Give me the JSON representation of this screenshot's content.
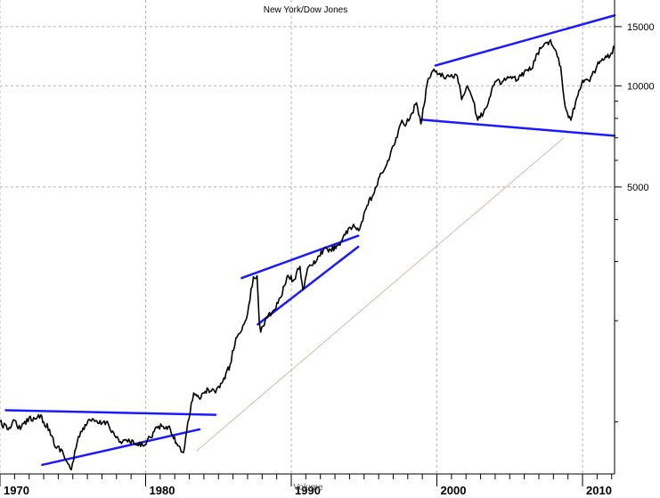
{
  "chart_data": {
    "type": "line",
    "title": "New York/Dow Jones",
    "subtitle": "Volume",
    "x_range": [
      1970.0,
      2012.2
    ],
    "y_range": [
      700,
      18000
    ],
    "y_scale": "log",
    "grid": true,
    "x_ticks": [
      1970,
      1980,
      1990,
      2000,
      2010
    ],
    "x_tick_labels": [
      "1970",
      "1980",
      "1990",
      "2000",
      "2010"
    ],
    "y_ticks": [
      5000,
      10000,
      15000
    ],
    "y_tick_labels": [
      "5000",
      "10000",
      "15000"
    ],
    "colors": {
      "price": "#000000",
      "trendline": "#1a1aff",
      "grid": "#b4b4b4",
      "diagonal": "#d8b8a8"
    },
    "series": [
      {
        "x": [
          1970.0,
          1970.5,
          1971.0,
          1971.4,
          1972.0,
          1972.4,
          1972.8,
          1973.0,
          1973.4,
          1973.8,
          1974.2,
          1974.6,
          1974.9,
          1975.3,
          1975.7,
          1976.2,
          1976.8,
          1977.3,
          1977.8,
          1978.2,
          1978.7,
          1979.2,
          1979.8,
          1980.3,
          1980.8,
          1981.2,
          1981.7,
          1982.2,
          1982.6,
          1982.9,
          1983.3,
          1983.8,
          1984.3,
          1984.8,
          1985.3,
          1985.8,
          1986.2,
          1986.6,
          1987.0,
          1987.4,
          1987.65,
          1987.8,
          1987.9,
          1988.3,
          1988.8,
          1989.3,
          1989.7,
          1990.2,
          1990.6,
          1990.8,
          1991.2,
          1991.7,
          1992.2,
          1992.7,
          1993.2,
          1993.7,
          1994.2,
          1994.7,
          1995.2,
          1995.7,
          1996.2,
          1996.7,
          1997.2,
          1997.6,
          1997.9,
          1998.3,
          1998.6,
          1998.9,
          1999.4,
          1999.8,
          2000.2,
          2000.6,
          2001.0,
          2001.4,
          2001.7,
          2002.1,
          2002.5,
          2002.8,
          2003.2,
          2003.6,
          2004.0,
          2004.5,
          2005.0,
          2005.5,
          2006.0,
          2006.5,
          2006.9,
          2007.3,
          2007.8,
          2008.2,
          2008.5,
          2008.8,
          2009.2,
          2009.6,
          2010.0,
          2010.5,
          2011.0,
          2011.5,
          2011.9,
          2012.2
        ],
        "values": [
          1000,
          950,
          1010,
          950,
          1030,
          1020,
          1050,
          1000,
          950,
          840,
          830,
          760,
          720,
          870,
          960,
          1010,
          990,
          1000,
          930,
          870,
          880,
          860,
          850,
          900,
          960,
          970,
          950,
          850,
          810,
          1000,
          1220,
          1180,
          1250,
          1220,
          1320,
          1480,
          1780,
          1870,
          2100,
          2700,
          2720,
          2000,
          1850,
          2050,
          2150,
          2350,
          2700,
          2650,
          2900,
          2470,
          2900,
          3000,
          3250,
          3250,
          3350,
          3600,
          3800,
          3750,
          4400,
          4800,
          5500,
          6000,
          7000,
          7900,
          7700,
          8300,
          8900,
          7700,
          10500,
          11200,
          10900,
          10500,
          10800,
          10700,
          9100,
          10000,
          9000,
          7900,
          8300,
          9200,
          10300,
          10300,
          10600,
          10400,
          11000,
          11200,
          12500,
          13100,
          13700,
          12600,
          11400,
          8700,
          7900,
          9200,
          10400,
          10300,
          11500,
          12000,
          12300,
          13000
        ]
      }
    ],
    "trendlines": [
      {
        "x": [
          1970.4,
          1984.8
        ],
        "values": [
          1083,
          1050
        ]
      },
      {
        "x": [
          1972.9,
          1983.7
        ],
        "values": [
          745,
          950
        ]
      },
      {
        "x": [
          1986.6,
          1994.6
        ],
        "values": [
          2680,
          3580
        ]
      },
      {
        "x": [
          1987.7,
          1994.6
        ],
        "values": [
          1950,
          3320
        ]
      },
      {
        "x": [
          1999.9,
          2012.2
        ],
        "values": [
          11490,
          16200
        ]
      },
      {
        "x": [
          1998.9,
          2012.2
        ],
        "values": [
          7930,
          7100
        ]
      }
    ],
    "diagonal_line": {
      "x": [
        1983.5,
        2008.7
      ],
      "values": [
        820,
        7000
      ]
    }
  }
}
